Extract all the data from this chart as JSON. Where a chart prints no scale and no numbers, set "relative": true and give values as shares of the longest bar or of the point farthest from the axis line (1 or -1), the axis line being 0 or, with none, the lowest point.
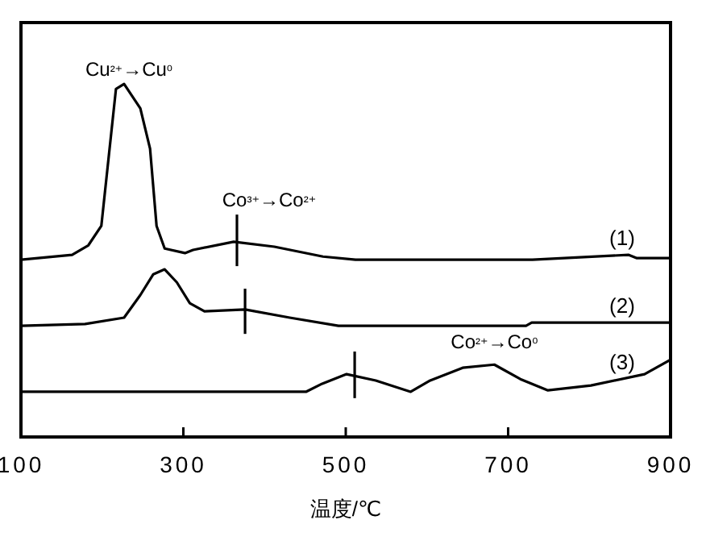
{
  "chart_data": {
    "type": "line",
    "xlabel": "温度/℃",
    "relative": true,
    "xlim": [
      100,
      900
    ],
    "xticks": [
      100,
      300,
      500,
      700,
      900
    ],
    "grid": false,
    "legend": false,
    "marker": "none",
    "line_style": "solid",
    "annotations": [
      {
        "text": "Cu²⁺→Cu⁰",
        "x": 233,
        "y": 1.0
      },
      {
        "text": "Co³⁺→Co²⁺",
        "x": 366,
        "y": 0.63
      },
      {
        "text": "Co²⁺→Co⁰",
        "x": 683,
        "y": 0.205
      }
    ],
    "series": [
      {
        "name": "(1)",
        "color": "#000000",
        "x": [
          100,
          163,
          183,
          199,
          217,
          227,
          247,
          259,
          267,
          277,
          302,
          312,
          362,
          412,
          472,
          512,
          730,
          848,
          858,
          900
        ],
        "values": [
          0.502,
          0.516,
          0.543,
          0.598,
          0.986,
          1.0,
          0.931,
          0.817,
          0.598,
          0.534,
          0.521,
          0.53,
          0.553,
          0.539,
          0.511,
          0.502,
          0.502,
          0.516,
          0.507,
          0.507
        ]
      },
      {
        "name": "(2)",
        "color": "#000000",
        "x": [
          100,
          179,
          227,
          247,
          263,
          277,
          292,
          308,
          326,
          376,
          431,
          491,
          722,
          729,
          900
        ],
        "values": [
          0.315,
          0.32,
          0.338,
          0.402,
          0.461,
          0.475,
          0.438,
          0.379,
          0.356,
          0.361,
          0.338,
          0.315,
          0.315,
          0.324,
          0.324
        ]
      },
      {
        "name": "(3)",
        "color": "#000000",
        "x": [
          100,
          451,
          471,
          501,
          537,
          580,
          604,
          644,
          683,
          715,
          749,
          802,
          868,
          900
        ],
        "values": [
          0.128,
          0.128,
          0.151,
          0.178,
          0.16,
          0.128,
          0.16,
          0.196,
          0.205,
          0.164,
          0.132,
          0.146,
          0.178,
          0.219
        ]
      },
      {
        "color": "#000000",
        "x": [
          366,
          366
        ],
        "values": [
          0.484,
          0.63
        ]
      },
      {
        "color": "#000000",
        "x": [
          376,
          376
        ],
        "values": [
          0.292,
          0.42
        ]
      },
      {
        "color": "#000000",
        "x": [
          511,
          511
        ],
        "values": [
          0.11,
          0.242
        ]
      }
    ]
  }
}
